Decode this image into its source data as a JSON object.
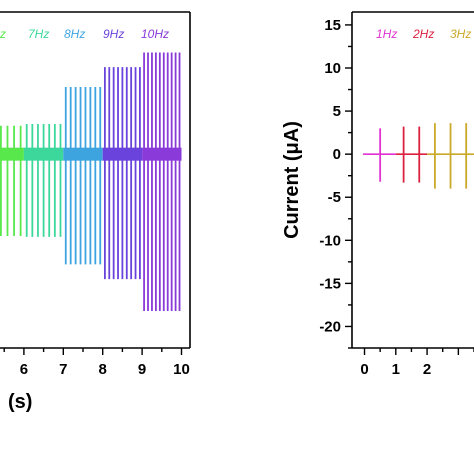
{
  "chart_data": [
    {
      "type": "line",
      "panel": "left",
      "title": "",
      "xlabel": "(s)",
      "ylabel": "",
      "xlim": [
        5,
        10
      ],
      "x_ticks": [
        "6",
        "7",
        "8",
        "9",
        "10"
      ],
      "legend": "top",
      "series": [
        {
          "name": "7Hz",
          "color": "#3cd79b",
          "t_start": 6.0,
          "t_end": 7.0,
          "frequency_hz": 7,
          "peak_up": 3.5,
          "peak_down": -9.6
        },
        {
          "name": "8Hz",
          "color": "#3ea4e0",
          "t_start": 7.0,
          "t_end": 8.0,
          "frequency_hz": 8,
          "peak_up": 7.8,
          "peak_down": -12.8
        },
        {
          "name": "9Hz",
          "color": "#6a42dc",
          "t_start": 8.0,
          "t_end": 9.0,
          "frequency_hz": 9,
          "peak_up": 10.1,
          "peak_down": -14.5
        },
        {
          "name": "10Hz",
          "color": "#8a3ad8",
          "t_start": 9.0,
          "t_end": 10.0,
          "frequency_hz": 10,
          "peak_up": 11.8,
          "peak_down": -18.2
        }
      ],
      "partial_series_label": "Hz",
      "partial_series": {
        "color": "#58e84c",
        "t_start": 5.0,
        "t_end": 6.0,
        "frequency_hz": 6,
        "peak_up": 3.3,
        "peak_down": -9.5
      },
      "baseline": 0
    },
    {
      "type": "line",
      "panel": "right",
      "title": "",
      "xlabel": "",
      "ylabel": "Current (μA)",
      "xlim": [
        -0.4,
        3.5
      ],
      "ylim": [
        -22.5,
        16.5
      ],
      "x_ticks": [
        "0",
        "1",
        "2"
      ],
      "y_ticks": [
        "15",
        "10",
        "5",
        "0",
        "-5",
        "-10",
        "-15",
        "-20"
      ],
      "legend": "top",
      "series": [
        {
          "name": "1Hz",
          "color": "#e032d2",
          "t_start": 0.0,
          "t_end": 1.0,
          "frequency_hz": 1,
          "peak_up": 3.0,
          "peak_down": -3.2
        },
        {
          "name": "2Hz",
          "color": "#dc2040",
          "t_start": 1.0,
          "t_end": 2.0,
          "frequency_hz": 2,
          "peak_up": 3.2,
          "peak_down": -3.3
        },
        {
          "name": "3Hz",
          "color": "#c9a82a",
          "t_start": 2.0,
          "t_end": 3.5,
          "frequency_hz": 3,
          "peak_up": 3.6,
          "peak_down": -4.0
        }
      ],
      "baseline": 0
    }
  ]
}
